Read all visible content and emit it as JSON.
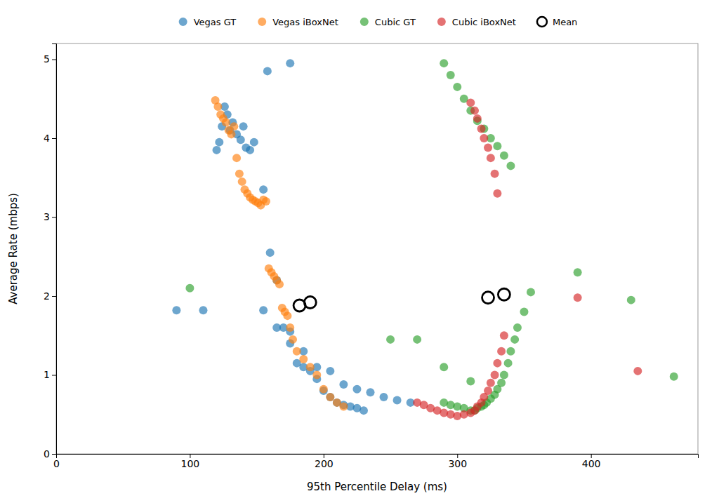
{
  "chart_data": {
    "type": "scatter",
    "xlabel": "95th Percentile Delay (ms)",
    "ylabel": "Average Rate (mbps)",
    "xlim": [
      0,
      480
    ],
    "ylim": [
      0,
      5.2
    ],
    "xticks": [
      0,
      100,
      200,
      300,
      400
    ],
    "yticks": [
      0,
      1,
      2,
      3,
      4,
      5
    ],
    "grid": false,
    "legend": "top",
    "series": [
      {
        "name": "Vegas GT",
        "x": [
          90,
          110,
          120,
          122,
          124,
          126,
          128,
          130,
          132,
          135,
          138,
          140,
          142,
          145,
          148,
          155,
          160,
          165,
          170,
          175,
          180,
          185,
          190,
          195,
          200,
          205,
          210,
          215,
          220,
          225,
          230,
          158,
          175,
          155,
          165,
          175,
          185,
          195,
          205,
          215,
          225,
          235,
          245,
          255,
          265
        ],
        "values": [
          1.82,
          1.82,
          3.85,
          3.95,
          4.15,
          4.4,
          4.3,
          4.1,
          4.2,
          4.05,
          3.98,
          4.15,
          3.88,
          3.85,
          3.95,
          3.35,
          2.55,
          2.2,
          1.6,
          1.4,
          1.15,
          1.1,
          1.05,
          0.95,
          0.8,
          0.72,
          0.65,
          0.62,
          0.6,
          0.58,
          0.55,
          4.85,
          4.95,
          1.82,
          1.6,
          1.55,
          1.3,
          1.1,
          1.05,
          0.88,
          0.82,
          0.78,
          0.72,
          0.68,
          0.65
        ]
      },
      {
        "name": "Vegas iBoxNet",
        "x": [
          119,
          121,
          123,
          125,
          127,
          129,
          131,
          133,
          135,
          137,
          139,
          141,
          143,
          145,
          147,
          149,
          151,
          153,
          155,
          157,
          159,
          161,
          163,
          165,
          167,
          169,
          171,
          173,
          175,
          177,
          180,
          185,
          190,
          195,
          200,
          205,
          210,
          215
        ],
        "values": [
          4.48,
          4.4,
          4.3,
          4.25,
          4.2,
          4.1,
          4.05,
          4.15,
          3.75,
          3.55,
          3.45,
          3.35,
          3.3,
          3.25,
          3.22,
          3.2,
          3.18,
          3.15,
          3.22,
          3.2,
          2.35,
          2.3,
          2.25,
          2.2,
          2.15,
          1.85,
          1.8,
          1.75,
          1.6,
          1.45,
          1.3,
          1.2,
          1.1,
          1.0,
          0.82,
          0.72,
          0.65,
          0.6
        ]
      },
      {
        "name": "Cubic GT",
        "x": [
          100,
          290,
          295,
          300,
          305,
          310,
          313,
          315,
          318,
          320,
          322,
          325,
          328,
          330,
          333,
          335,
          338,
          340,
          343,
          345,
          350,
          355,
          290,
          295,
          300,
          305,
          310,
          315,
          320,
          325,
          330,
          335,
          340,
          250,
          270,
          290,
          310,
          390,
          430,
          462
        ],
        "values": [
          2.1,
          0.65,
          0.62,
          0.6,
          0.58,
          0.55,
          0.55,
          0.58,
          0.6,
          0.62,
          0.65,
          0.7,
          0.75,
          0.82,
          0.9,
          1.0,
          1.15,
          1.3,
          1.45,
          1.6,
          1.8,
          2.05,
          4.95,
          4.8,
          4.65,
          4.5,
          4.35,
          4.22,
          4.12,
          4.0,
          3.9,
          3.78,
          3.65,
          1.45,
          1.45,
          1.1,
          0.92,
          2.3,
          1.95,
          0.98
        ]
      },
      {
        "name": "Cubic iBoxNet",
        "x": [
          270,
          275,
          280,
          285,
          290,
          295,
          300,
          305,
          310,
          313,
          315,
          318,
          320,
          323,
          325,
          328,
          330,
          333,
          335,
          310,
          313,
          315,
          318,
          320,
          323,
          325,
          328,
          330,
          390,
          435
        ],
        "values": [
          0.65,
          0.62,
          0.58,
          0.55,
          0.52,
          0.5,
          0.48,
          0.5,
          0.52,
          0.55,
          0.6,
          0.65,
          0.72,
          0.8,
          0.9,
          1.0,
          1.15,
          1.3,
          1.5,
          4.45,
          4.35,
          4.25,
          4.12,
          4.0,
          3.88,
          3.75,
          3.55,
          3.3,
          1.98,
          1.05
        ]
      },
      {
        "name": "Mean",
        "color": "#000000",
        "marker": "open-circle",
        "x": [
          182,
          190,
          323,
          335
        ],
        "values": [
          1.88,
          1.92,
          1.98,
          2.02
        ]
      }
    ]
  }
}
